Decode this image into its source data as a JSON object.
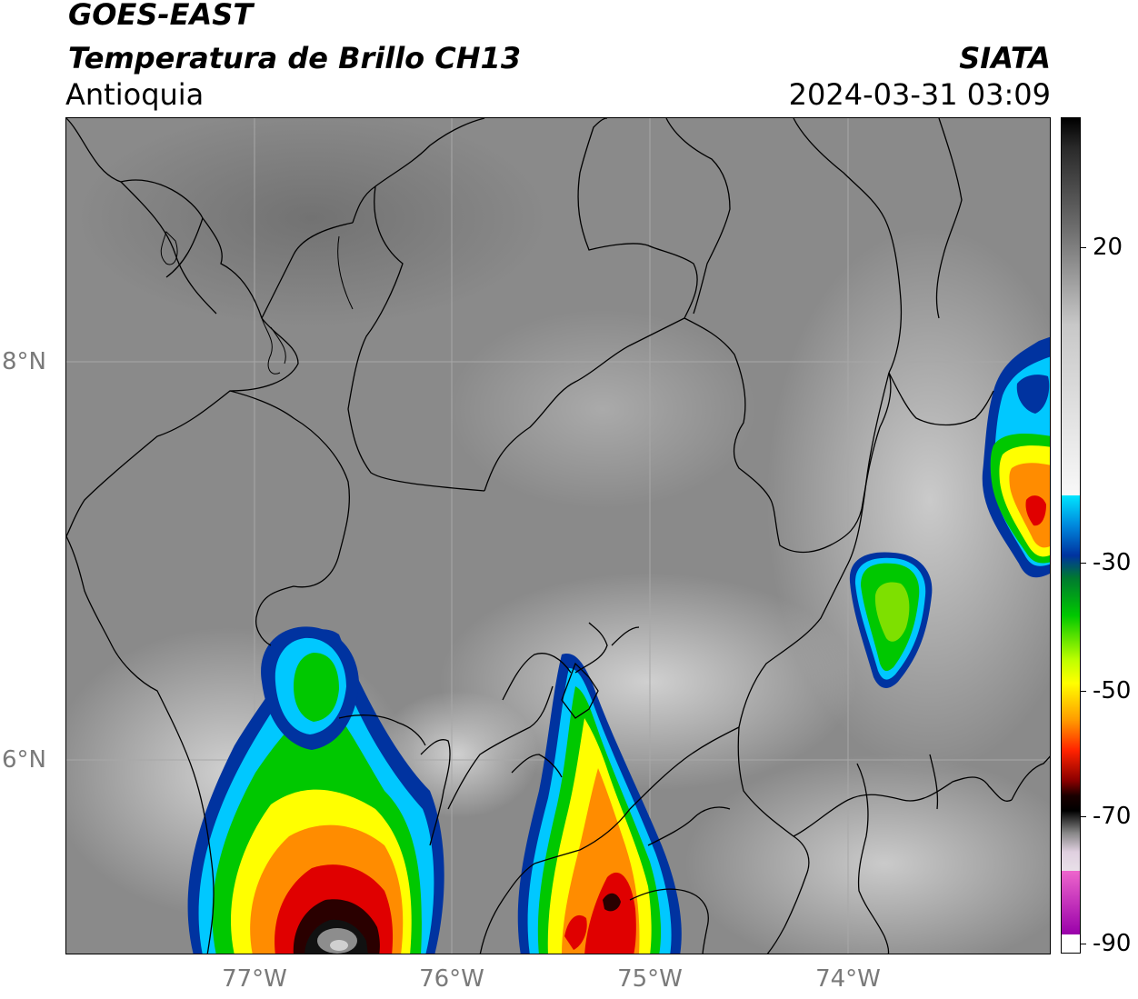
{
  "header": {
    "satellite": "GOES-EAST",
    "product": "Temperatura de Brillo CH13",
    "region": "Antioquia",
    "organization": "SIATA",
    "datetime": "2024-03-31 03:09"
  },
  "map": {
    "longitude_labels": [
      "77°W",
      "76°W",
      "75°W",
      "74°W"
    ],
    "latitude_labels": [
      "8°N",
      "6°N"
    ],
    "background_color": "#8a8a8a",
    "gridline_color": "#a0a0a0",
    "border_color": "#000000"
  },
  "colorbar": {
    "tick_labels": [
      "20",
      "-30",
      "-50",
      "-70",
      "-90"
    ],
    "colors": [
      "#f4f4f4",
      "#00e5ff",
      "#0033a0",
      "#00c800",
      "#ffff00",
      "#ff8c00",
      "#ff0000",
      "#2a0000",
      "#000000",
      "#cccccc",
      "#ee66cc",
      "#9900aa"
    ]
  }
}
